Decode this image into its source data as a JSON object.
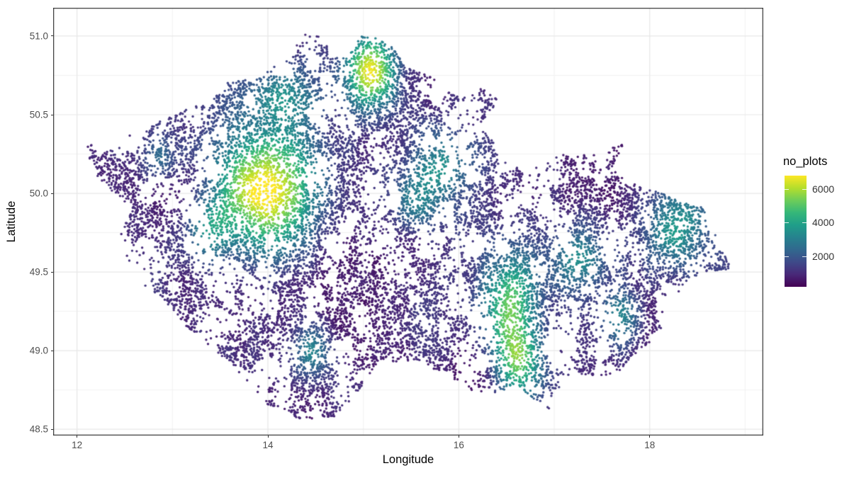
{
  "figure": {
    "background": "#ffffff"
  },
  "axis_style": {
    "tick_label_color": "#4d4d4d",
    "title_color": "#000000",
    "tick_mark_color": "#333333",
    "panel_border_color": "#2b2b2b",
    "grid_major_color": "#e7e7e7",
    "grid_minor_color": "#f2f2f2",
    "panel_background": "#ffffff"
  },
  "chart_data": {
    "type": "scatter",
    "xlabel": "Longitude",
    "ylabel": "Latitude",
    "xlim": [
      11.75,
      19.19
    ],
    "ylim": [
      48.46,
      51.18
    ],
    "x_ticks": [
      12,
      14,
      16,
      18
    ],
    "x_tick_labels": [
      "12",
      "14",
      "16",
      "18"
    ],
    "x_minor_ticks": [
      13,
      15,
      17,
      19
    ],
    "y_ticks": [
      48.5,
      49.0,
      49.5,
      50.0,
      50.5,
      51.0
    ],
    "y_tick_labels": [
      "48.5",
      "49.0",
      "49.5",
      "50.0",
      "50.5",
      "51.0"
    ],
    "y_minor_ticks": [
      48.75,
      49.25,
      49.75,
      50.25,
      50.75
    ],
    "grid": true,
    "legend": {
      "title": "no_plots",
      "position": "right",
      "ticks": [
        2000,
        4000,
        6000
      ],
      "tick_labels": [
        "2000",
        "4000",
        "6000"
      ],
      "vmin": 170,
      "vmax": 6800
    },
    "colormap": {
      "name": "viridis",
      "stops": [
        "#440154",
        "#482878",
        "#3e4a89",
        "#31688e",
        "#26828e",
        "#1f9e89",
        "#35b779",
        "#6dcd59",
        "#b4de2c",
        "#fde725"
      ]
    },
    "points": {
      "count": 16500,
      "radius_px": 1.7,
      "seed": 1234,
      "clump_noise": {
        "octaves": [
          {
            "freq": 6,
            "amp": 0.5
          },
          {
            "freq": 13,
            "amp": 0.3
          },
          {
            "freq": 27,
            "amp": 0.2
          }
        ],
        "threshold": 0.52,
        "loner_prob": 0.13,
        "hotspot_boost": 0.5,
        "hotspot_boost_max": 0.35
      },
      "value_noise": {
        "base": 250,
        "amp": 1300,
        "octaves": [
          {
            "freq": 2.5,
            "amp": 0.6
          },
          {
            "freq": 7,
            "amp": 0.4
          }
        ],
        "jitter": 200
      }
    },
    "hotspots": [
      {
        "x": 13.97,
        "y": 50.02,
        "value": 6400,
        "sigma_x": 0.34,
        "sigma_y": 0.25
      },
      {
        "x": 15.08,
        "y": 50.77,
        "value": 5500,
        "sigma_x": 0.18,
        "sigma_y": 0.16
      },
      {
        "x": 14.12,
        "y": 50.62,
        "value": 2400,
        "sigma_x": 0.25,
        "sigma_y": 0.14
      },
      {
        "x": 15.85,
        "y": 50.18,
        "value": 2400,
        "sigma_x": 0.25,
        "sigma_y": 0.18
      },
      {
        "x": 16.55,
        "y": 49.3,
        "value": 3900,
        "sigma_x": 0.2,
        "sigma_y": 0.22
      },
      {
        "x": 16.62,
        "y": 48.92,
        "value": 3700,
        "sigma_x": 0.16,
        "sigma_y": 0.16
      },
      {
        "x": 18.28,
        "y": 49.78,
        "value": 2800,
        "sigma_x": 0.24,
        "sigma_y": 0.18
      },
      {
        "x": 17.25,
        "y": 49.58,
        "value": 2200,
        "sigma_x": 0.18,
        "sigma_y": 0.14
      },
      {
        "x": 17.7,
        "y": 49.2,
        "value": 2100,
        "sigma_x": 0.14,
        "sigma_y": 0.12
      },
      {
        "x": 13.37,
        "y": 49.75,
        "value": 2300,
        "sigma_x": 0.16,
        "sigma_y": 0.13
      },
      {
        "x": 14.46,
        "y": 48.98,
        "value": 2300,
        "sigma_x": 0.15,
        "sigma_y": 0.13
      },
      {
        "x": 12.87,
        "y": 50.22,
        "value": 1500,
        "sigma_x": 0.14,
        "sigma_y": 0.1
      },
      {
        "x": 15.57,
        "y": 49.95,
        "value": 1700,
        "sigma_x": 0.15,
        "sigma_y": 0.13
      }
    ],
    "boundary_polygon": [
      [
        12.09,
        50.25
      ],
      [
        12.1,
        50.32
      ],
      [
        12.33,
        50.26
      ],
      [
        12.51,
        50.38
      ],
      [
        12.7,
        50.39
      ],
      [
        12.83,
        50.45
      ],
      [
        13.03,
        50.5
      ],
      [
        13.32,
        50.58
      ],
      [
        13.53,
        50.7
      ],
      [
        13.86,
        50.73
      ],
      [
        14.07,
        50.82
      ],
      [
        14.31,
        50.88
      ],
      [
        14.28,
        50.98
      ],
      [
        14.41,
        51.05
      ],
      [
        14.59,
        50.98
      ],
      [
        14.64,
        50.92
      ],
      [
        14.61,
        50.86
      ],
      [
        14.84,
        50.87
      ],
      [
        14.99,
        51.01
      ],
      [
        15.17,
        51.01
      ],
      [
        15.28,
        50.95
      ],
      [
        15.45,
        50.8
      ],
      [
        15.73,
        50.74
      ],
      [
        16.02,
        50.6
      ],
      [
        16.24,
        50.67
      ],
      [
        16.42,
        50.59
      ],
      [
        16.21,
        50.43
      ],
      [
        16.45,
        50.29
      ],
      [
        16.7,
        50.1
      ],
      [
        16.88,
        50.21
      ],
      [
        17.1,
        50.26
      ],
      [
        17.43,
        50.26
      ],
      [
        17.72,
        50.31
      ],
      [
        17.6,
        50.16
      ],
      [
        17.76,
        50.07
      ],
      [
        18.04,
        50.03
      ],
      [
        18.35,
        49.94
      ],
      [
        18.57,
        49.91
      ],
      [
        18.85,
        49.52
      ],
      [
        18.55,
        49.5
      ],
      [
        18.39,
        49.39
      ],
      [
        18.16,
        49.27
      ],
      [
        18.1,
        49.08
      ],
      [
        17.91,
        49.02
      ],
      [
        17.65,
        48.85
      ],
      [
        17.39,
        48.83
      ],
      [
        17.18,
        48.87
      ],
      [
        16.94,
        48.62
      ],
      [
        16.6,
        48.78
      ],
      [
        16.38,
        48.73
      ],
      [
        16.09,
        48.75
      ],
      [
        15.84,
        48.87
      ],
      [
        15.54,
        48.91
      ],
      [
        15.16,
        48.94
      ],
      [
        14.99,
        48.77
      ],
      [
        14.7,
        48.58
      ],
      [
        14.32,
        48.56
      ],
      [
        14.04,
        48.63
      ],
      [
        13.84,
        48.77
      ],
      [
        13.51,
        48.97
      ],
      [
        13.17,
        49.14
      ],
      [
        12.88,
        49.34
      ],
      [
        12.66,
        49.43
      ],
      [
        12.5,
        49.63
      ],
      [
        12.44,
        49.7
      ],
      [
        12.55,
        49.92
      ],
      [
        12.26,
        50.06
      ]
    ]
  }
}
